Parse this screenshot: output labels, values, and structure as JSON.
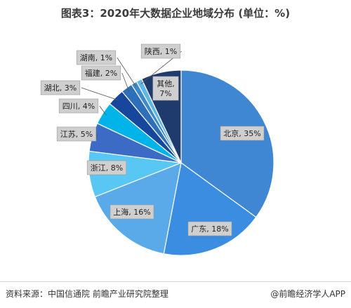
{
  "title": "图表3：2020年大数据企业地域分布 (单位：%)",
  "footer": {
    "source": "资料来源：中国信通院 前瞻产业研究院整理",
    "brand": "@前瞻经济学人APP"
  },
  "chart_data": {
    "type": "pie",
    "title": "图表3：2020年大数据企业地域分布 (单位：%)",
    "unit": "%",
    "categories": [
      "北京",
      "广东",
      "上海",
      "浙江",
      "江苏",
      "四川",
      "湖北",
      "福建",
      "湖南",
      "陕西",
      "其他"
    ],
    "values": [
      35,
      18,
      16,
      8,
      5,
      4,
      3,
      2,
      1,
      1,
      7
    ],
    "colors": [
      "#3f86d3",
      "#3a8de0",
      "#5aaae9",
      "#59c7f4",
      "#3b6bc4",
      "#00b4e9",
      "#17479c",
      "#2d6fb8",
      "#3d8ac8",
      "#5fb7e6",
      "#1f3b6d"
    ],
    "labels": [
      "北京, 35%",
      "广东, 18%",
      "上海, 16%",
      "浙江, 8%",
      "江苏, 5%",
      "四川, 4%",
      "湖北, 3%",
      "福建, 2%",
      "湖南, 1%",
      "陕西, 1%",
      "其他, 7%"
    ],
    "label_lines": [
      [
        "其他,",
        "7%"
      ]
    ]
  }
}
